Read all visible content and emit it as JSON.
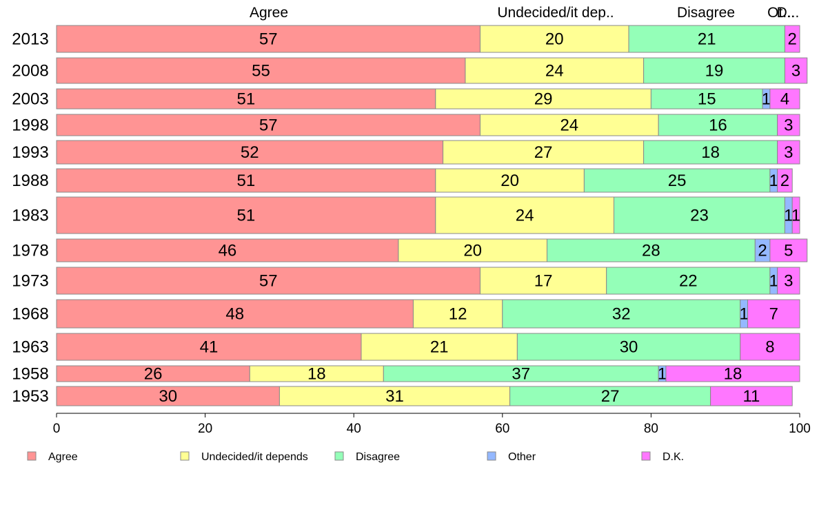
{
  "chart_data": {
    "type": "bar",
    "orientation": "horizontal",
    "stacked": true,
    "title": "",
    "xlabel": "",
    "ylabel": "",
    "xlim": [
      0,
      100
    ],
    "x_ticks": [
      "0",
      "20",
      "40",
      "60",
      "80",
      "100"
    ],
    "grid": false,
    "legend_position": "bottom",
    "column_headers": [
      "Agree",
      "Undecided/it dep..",
      "Disagree",
      "Ot...",
      "D..."
    ],
    "categories": [
      "2013",
      "2008",
      "2003",
      "1998",
      "1993",
      "1988",
      "1983",
      "1978",
      "1973",
      "1968",
      "1963",
      "1958",
      "1953"
    ],
    "series": [
      {
        "name": "Agree",
        "color": "#ff9494",
        "values": [
          57,
          55,
          51,
          57,
          52,
          51,
          51,
          46,
          57,
          48,
          41,
          26,
          30
        ]
      },
      {
        "name": "Undecided/it depends",
        "color": "#ffff94",
        "values": [
          20,
          24,
          29,
          24,
          27,
          20,
          24,
          20,
          17,
          12,
          21,
          18,
          31
        ]
      },
      {
        "name": "Disagree",
        "color": "#94ffb8",
        "values": [
          21,
          19,
          15,
          16,
          18,
          25,
          23,
          28,
          22,
          32,
          30,
          37,
          27
        ]
      },
      {
        "name": "Other",
        "color": "#94b8ff",
        "values": [
          0,
          0,
          1,
          0,
          0,
          1,
          1,
          2,
          1,
          1,
          0,
          1,
          0
        ]
      },
      {
        "name": "D.K.",
        "color": "#ff77ff",
        "values": [
          2,
          3,
          4,
          3,
          3,
          2,
          1,
          5,
          3,
          7,
          8,
          18,
          11
        ]
      }
    ]
  }
}
